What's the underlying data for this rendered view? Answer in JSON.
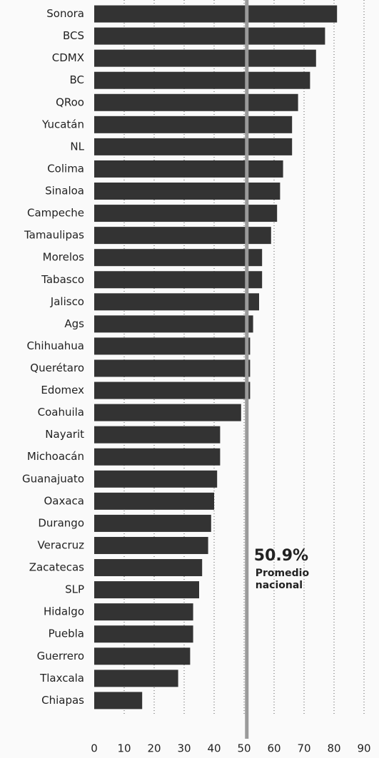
{
  "chart_data": {
    "type": "bar",
    "orientation": "horizontal",
    "categories": [
      "Sonora",
      "BCS",
      "CDMX",
      "BC",
      "QRoo",
      "Yucatán",
      "NL",
      "Colima",
      "Sinaloa",
      "Campeche",
      "Tamaulipas",
      "Morelos",
      "Tabasco",
      "Jalisco",
      "Ags",
      "Chihuahua",
      "Querétaro",
      "Edomex",
      "Coahuila",
      "Nayarit",
      "Michoacán",
      "Guanajuato",
      "Oaxaca",
      "Durango",
      "Veracruz",
      "Zacatecas",
      "SLP",
      "Hidalgo",
      "Puebla",
      "Guerrero",
      "Tlaxcala",
      "Chiapas"
    ],
    "values": [
      81,
      77,
      74,
      72,
      68,
      66,
      66,
      63,
      62,
      61,
      59,
      56,
      56,
      55,
      53,
      52,
      52,
      52,
      49,
      42,
      42,
      41,
      40,
      39,
      38,
      36,
      35,
      33,
      33,
      32,
      28,
      16
    ],
    "color": "#333333",
    "xlim": [
      0,
      90
    ],
    "xticks": [
      0,
      10,
      20,
      30,
      40,
      50,
      60,
      70,
      80,
      90
    ],
    "grid": true,
    "reference_line": {
      "value": 50.9,
      "value_label": "50.9%",
      "text": [
        "Promedio",
        "nacional"
      ],
      "color": "#9a9a9a"
    }
  }
}
